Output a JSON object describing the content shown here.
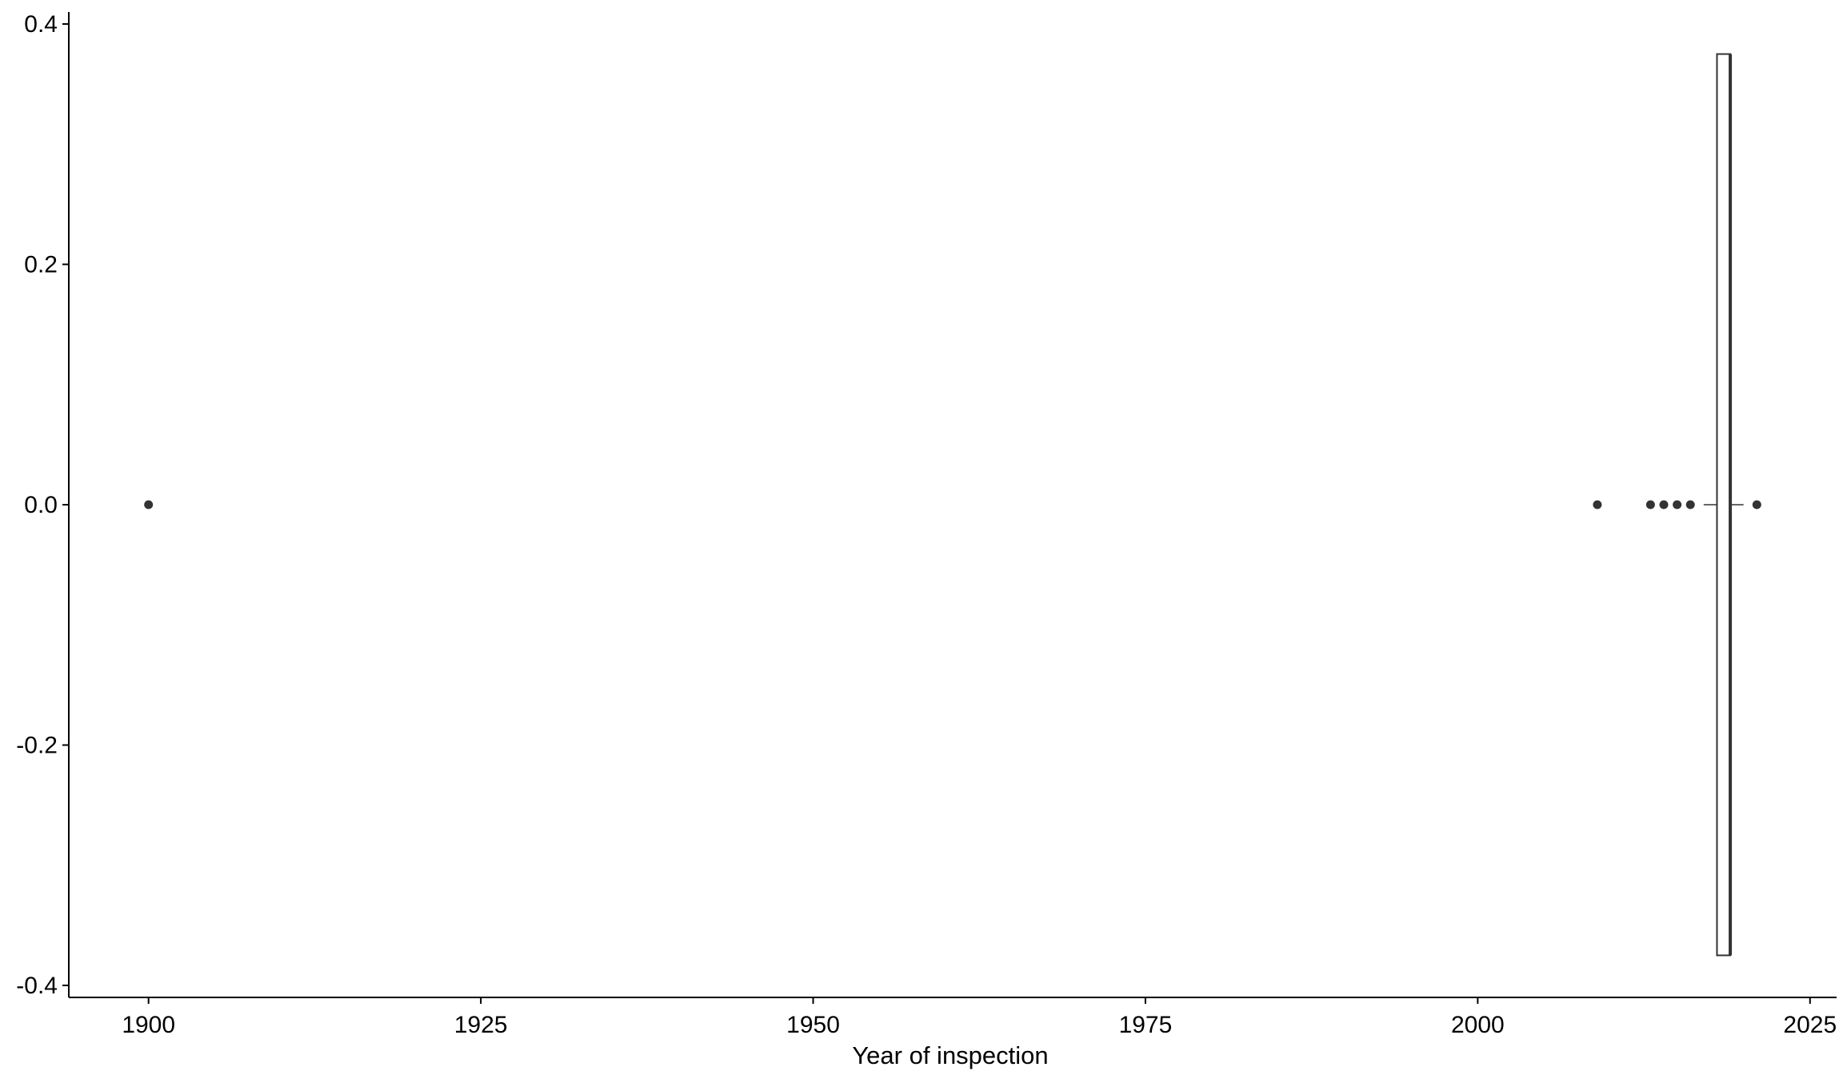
{
  "chart_data": {
    "type": "boxplot",
    "orientation": "horizontal",
    "title": "",
    "xlabel": "Year of inspection",
    "ylabel": "",
    "xlim": [
      1894,
      2027
    ],
    "ylim": [
      -0.41,
      0.41
    ],
    "x_ticks": [
      1900,
      1925,
      1950,
      1975,
      2000,
      2025
    ],
    "x_tick_labels": [
      "1900",
      "1925",
      "1950",
      "1975",
      "2000",
      "2025"
    ],
    "y_ticks": [
      0.4,
      0.2,
      0.0,
      -0.2,
      -0.4
    ],
    "y_tick_labels": [
      "0.4",
      "0.2",
      "0.0",
      "-0.2",
      "-0.4"
    ],
    "box": {
      "y_center": 0.0,
      "half_width": 0.375,
      "q1": 2018,
      "median": 2019,
      "q3": 2019,
      "whisker_low": 2017,
      "whisker_high": 2020
    },
    "outliers": [
      {
        "x": 1900,
        "y": 0.0
      },
      {
        "x": 2009,
        "y": 0.0
      },
      {
        "x": 2013,
        "y": 0.0
      },
      {
        "x": 2014,
        "y": 0.0
      },
      {
        "x": 2015,
        "y": 0.0
      },
      {
        "x": 2016,
        "y": 0.0
      },
      {
        "x": 2021,
        "y": 0.0
      }
    ],
    "grid": false,
    "legend": "none",
    "colors": {
      "line": "#333333",
      "point": "#333333",
      "axis": "#000000",
      "box_fill": "#ffffff"
    }
  }
}
